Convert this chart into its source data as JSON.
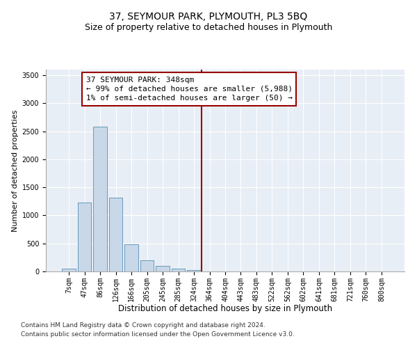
{
  "title": "37, SEYMOUR PARK, PLYMOUTH, PL3 5BQ",
  "subtitle": "Size of property relative to detached houses in Plymouth",
  "xlabel": "Distribution of detached houses by size in Plymouth",
  "ylabel": "Number of detached properties",
  "footnote1": "Contains HM Land Registry data © Crown copyright and database right 2024.",
  "footnote2": "Contains public sector information licensed under the Open Government Licence v3.0.",
  "bar_labels": [
    "7sqm",
    "47sqm",
    "86sqm",
    "126sqm",
    "166sqm",
    "205sqm",
    "245sqm",
    "285sqm",
    "324sqm",
    "364sqm",
    "404sqm",
    "443sqm",
    "483sqm",
    "522sqm",
    "562sqm",
    "602sqm",
    "641sqm",
    "681sqm",
    "721sqm",
    "760sqm",
    "800sqm"
  ],
  "bar_values": [
    50,
    1230,
    2580,
    1320,
    490,
    200,
    100,
    50,
    30,
    0,
    0,
    0,
    0,
    0,
    0,
    0,
    0,
    0,
    0,
    0,
    0
  ],
  "bar_color": "#c8d8e8",
  "bar_edge_color": "#6699bb",
  "vline_x": 8.5,
  "vline_color": "#990000",
  "annotation_text": "37 SEYMOUR PARK: 348sqm\n← 99% of detached houses are smaller (5,988)\n1% of semi-detached houses are larger (50) →",
  "annotation_box_color": "#990000",
  "annotation_text_color": "#000000",
  "plot_bg_color": "#e8eef5",
  "ylim": [
    0,
    3600
  ],
  "yticks": [
    0,
    500,
    1000,
    1500,
    2000,
    2500,
    3000,
    3500
  ],
  "title_fontsize": 10,
  "subtitle_fontsize": 9,
  "xlabel_fontsize": 8.5,
  "ylabel_fontsize": 8,
  "tick_fontsize": 7,
  "annotation_fontsize": 8,
  "footnote_fontsize": 6.5
}
